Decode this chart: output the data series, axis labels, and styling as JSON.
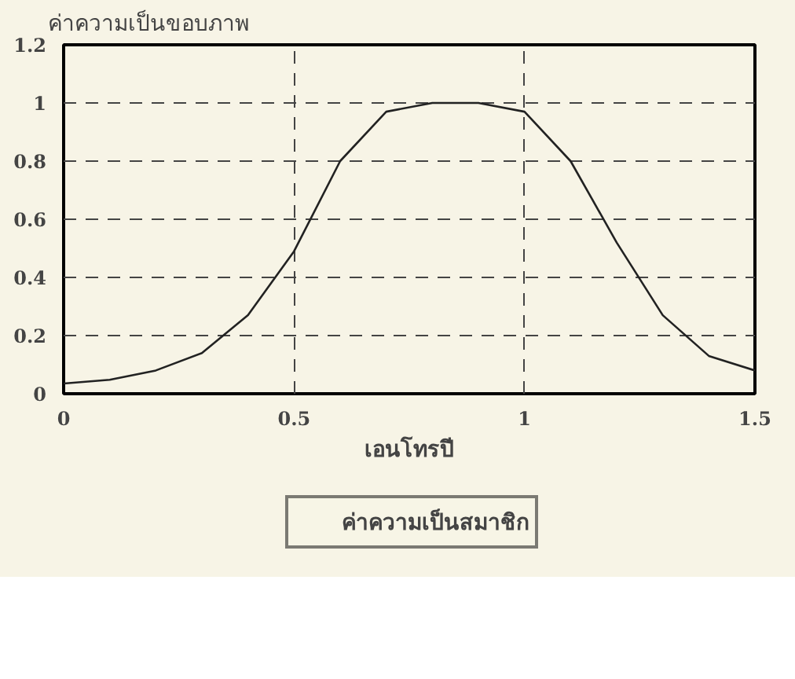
{
  "chart_data": {
    "type": "line",
    "ylabel": "ค่าความเป็นขอบภาพ",
    "xlabel": "เอนโทรปี",
    "x": [
      0,
      0.1,
      0.2,
      0.3,
      0.4,
      0.5,
      0.6,
      0.7,
      0.8,
      0.9,
      1.0,
      1.1,
      1.2,
      1.3,
      1.4,
      1.5
    ],
    "series": [
      {
        "name": "ค่าความเป็นสมาชิก",
        "color": "#222222",
        "values": [
          0.035,
          0.048,
          0.08,
          0.14,
          0.27,
          0.49,
          0.8,
          0.97,
          1.0,
          1.0,
          0.97,
          0.8,
          0.52,
          0.27,
          0.13,
          0.08
        ]
      }
    ],
    "xlim": [
      0,
      1.5
    ],
    "xticks": [
      0,
      0.5,
      1,
      1.5
    ],
    "ylim": [
      0,
      1.2
    ],
    "yticks": [
      0,
      0.2,
      0.4,
      0.6,
      0.8,
      1,
      1.2
    ],
    "grid": true,
    "legend": "bottom",
    "line_style": "solid",
    "marker": "none"
  }
}
